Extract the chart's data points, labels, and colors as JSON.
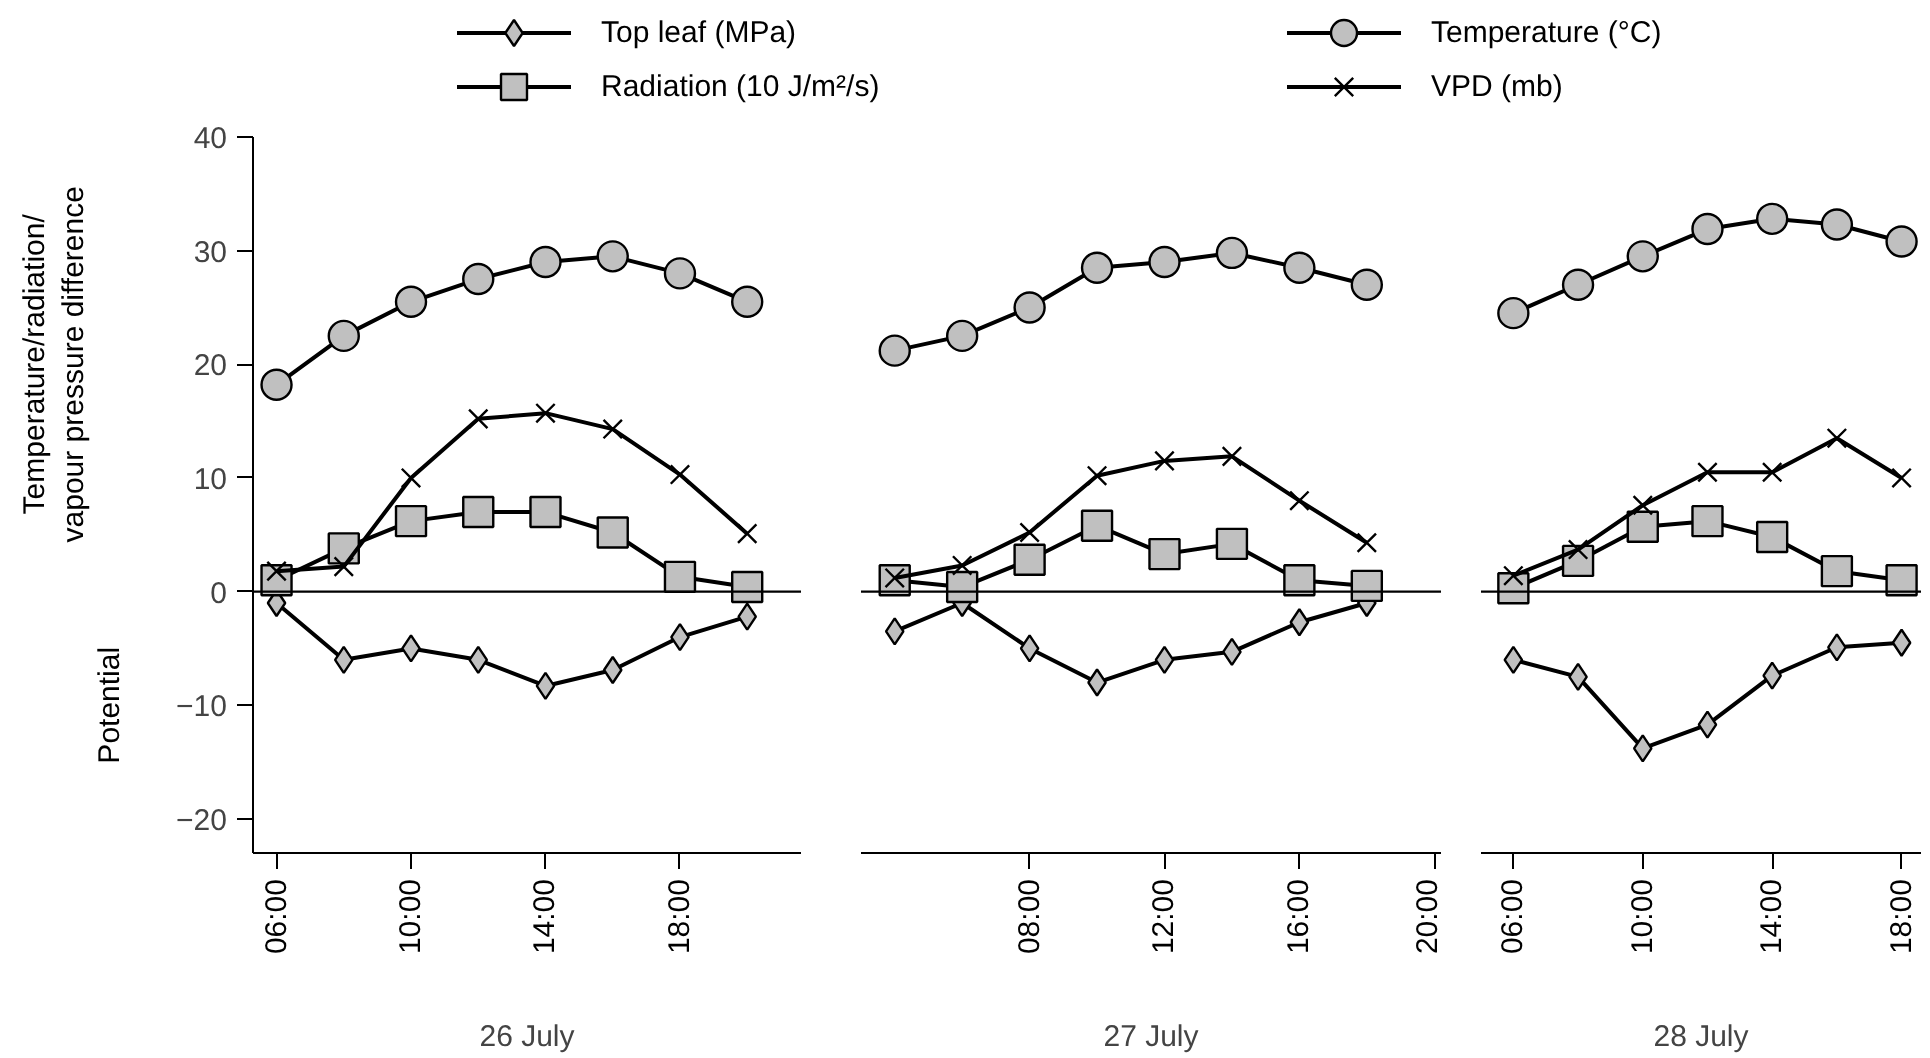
{
  "chart_data": [
    {
      "type": "line",
      "xlabel": "26 July",
      "ylabel": "Temperature/radiation/\nvapour pressure difference",
      "annotations": [
        "Potential"
      ],
      "legend": "top",
      "grid": false,
      "tick_labels": "xy",
      "x": [
        6,
        8,
        10,
        12,
        14,
        16,
        18,
        20
      ],
      "xlim": [
        5.3,
        21.6
      ],
      "ylim": [
        -23,
        40
      ],
      "yticks": [
        -20,
        -10,
        0,
        10,
        20,
        30,
        40
      ],
      "xticks": [
        {
          "value": 6,
          "label": "06:00"
        },
        {
          "value": 10,
          "label": "10:00"
        },
        {
          "value": 14,
          "label": "14:00"
        },
        {
          "value": 18,
          "label": "18:00"
        }
      ],
      "ref_lines": [
        {
          "axis": "y",
          "value": 0,
          "label": null,
          "color": "#000000"
        }
      ],
      "series": [
        {
          "name": "Top leaf (MPa)",
          "color": "#000000",
          "marker": "diamond",
          "values": [
            -1,
            -6,
            -5,
            -6,
            -8.3,
            -6.9,
            -4,
            -2.2
          ]
        },
        {
          "name": "Temperature (°C)",
          "color": "#000000",
          "marker": "circle",
          "values": [
            18.2,
            22.5,
            25.5,
            27.5,
            29,
            29.5,
            28,
            25.5
          ]
        },
        {
          "name": "Radiation (10 J/m²/s)",
          "color": "#000000",
          "marker": "square",
          "values": [
            1,
            3.8,
            6.2,
            7,
            7,
            5.2,
            1.3,
            0.4
          ]
        },
        {
          "name": "VPD (mb)",
          "color": "#000000",
          "marker": "cross",
          "values": [
            1.8,
            2.2,
            10,
            15.2,
            15.7,
            14.3,
            10.3,
            5.1
          ]
        }
      ]
    },
    {
      "type": "line",
      "xlabel": "27 July",
      "grid": false,
      "tick_labels": "x",
      "x": [
        4,
        6,
        8,
        10,
        12,
        14,
        16,
        18
      ],
      "xlim": [
        3,
        20.2
      ],
      "ylim": [
        -23,
        40
      ],
      "xticks": [
        {
          "value": 8,
          "label": "08:00"
        },
        {
          "value": 12,
          "label": "12:00"
        },
        {
          "value": 16,
          "label": "16:00"
        },
        {
          "value": 20,
          "label": "20:00"
        }
      ],
      "ref_lines": [
        {
          "axis": "y",
          "value": 0,
          "label": null,
          "color": "#000000"
        }
      ],
      "series": [
        {
          "color": "#000000",
          "marker": "diamond",
          "values": [
            -3.5,
            -1,
            -5,
            -8,
            -6,
            -5.3,
            -2.7,
            -1
          ]
        },
        {
          "color": "#000000",
          "marker": "circle",
          "values": [
            21.2,
            22.5,
            25,
            28.5,
            29,
            29.8,
            28.5,
            27
          ]
        },
        {
          "color": "#000000",
          "marker": "square",
          "values": [
            1,
            0.4,
            2.8,
            5.8,
            3.3,
            4.2,
            1,
            0.5
          ]
        },
        {
          "color": "#000000",
          "marker": "cross",
          "values": [
            1.2,
            2.3,
            5.2,
            10.2,
            11.5,
            11.9,
            8,
            4.3
          ]
        }
      ]
    },
    {
      "type": "line",
      "xlabel": "28 July",
      "grid": false,
      "tick_labels": "x",
      "x": [
        6,
        8,
        10,
        12,
        14,
        16,
        18
      ],
      "xlim": [
        5,
        18.6
      ],
      "ylim": [
        -23,
        40
      ],
      "xticks": [
        {
          "value": 6,
          "label": "06:00"
        },
        {
          "value": 10,
          "label": "10:00"
        },
        {
          "value": 14,
          "label": "14:00"
        },
        {
          "value": 18,
          "label": "18:00"
        }
      ],
      "ref_lines": [
        {
          "axis": "y",
          "value": 0,
          "label": null,
          "color": "#000000"
        }
      ],
      "series": [
        {
          "color": "#000000",
          "marker": "diamond",
          "values": [
            -6,
            -7.5,
            -13.8,
            -11.7,
            -7.4,
            -4.9,
            -4.5
          ]
        },
        {
          "color": "#000000",
          "marker": "circle",
          "values": [
            24.5,
            27,
            29.5,
            31.9,
            32.8,
            32.3,
            30.8
          ]
        },
        {
          "color": "#000000",
          "marker": "square",
          "values": [
            0.3,
            2.7,
            5.7,
            6.2,
            4.8,
            1.8,
            1
          ]
        },
        {
          "color": "#000000",
          "marker": "cross",
          "values": [
            1.4,
            3.7,
            7.6,
            10.5,
            10.5,
            13.5,
            10
          ]
        }
      ]
    }
  ]
}
